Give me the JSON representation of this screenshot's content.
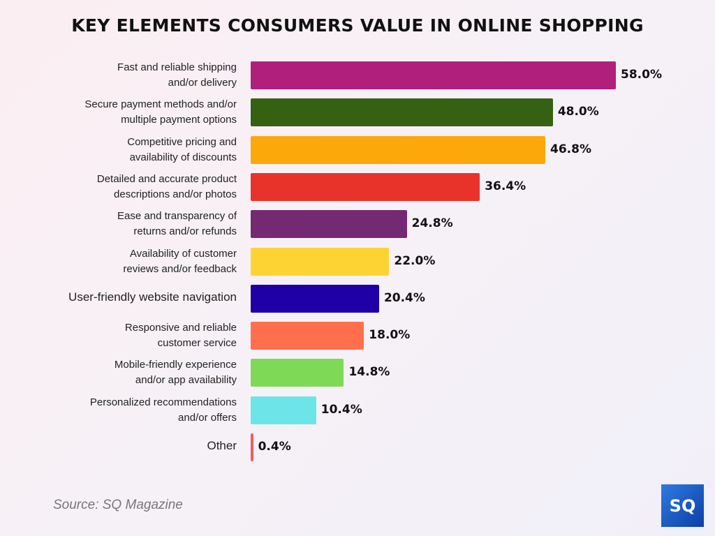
{
  "chart_data": {
    "type": "bar",
    "orientation": "horizontal",
    "title": "KEY ELEMENTS CONSUMERS VALUE IN ONLINE SHOPPING",
    "xlabel": "",
    "ylabel": "",
    "xlim": [
      0,
      60
    ],
    "unit": "%",
    "categories": [
      [
        "Fast and reliable shipping",
        "and/or delivery"
      ],
      [
        "Secure payment methods and/or",
        "multiple payment options"
      ],
      [
        "Competitive pricing and",
        "availability of discounts"
      ],
      [
        "Detailed and accurate product",
        "descriptions and/or photos"
      ],
      [
        "Ease and transparency of",
        "returns and/or refunds"
      ],
      [
        "Availability of customer",
        "reviews and/or feedback"
      ],
      [
        "User-friendly website navigation"
      ],
      [
        "Responsive and reliable",
        "customer service"
      ],
      [
        "Mobile-friendly experience",
        "and/or app availability"
      ],
      [
        "Personalized recommendations",
        "and/or offers"
      ],
      [
        "Other"
      ]
    ],
    "values": [
      58.0,
      48.0,
      46.8,
      36.4,
      24.8,
      22.0,
      20.4,
      18.0,
      14.8,
      10.4,
      0.4
    ],
    "value_labels": [
      "58.0%",
      "48.0%",
      "46.8%",
      "36.4%",
      "24.8%",
      "22.0%",
      "20.4%",
      "18.0%",
      "14.8%",
      "10.4%",
      "0.4%"
    ],
    "colors": [
      "#b01f7c",
      "#356113",
      "#fca80a",
      "#e8332a",
      "#732a72",
      "#fdd334",
      "#1f00a7",
      "#ff6f4e",
      "#7ed957",
      "#6ce5e8",
      "#f25c5c"
    ],
    "grid": false,
    "legend": "none"
  },
  "source": "Source: SQ Magazine",
  "logo_text": "SQ"
}
